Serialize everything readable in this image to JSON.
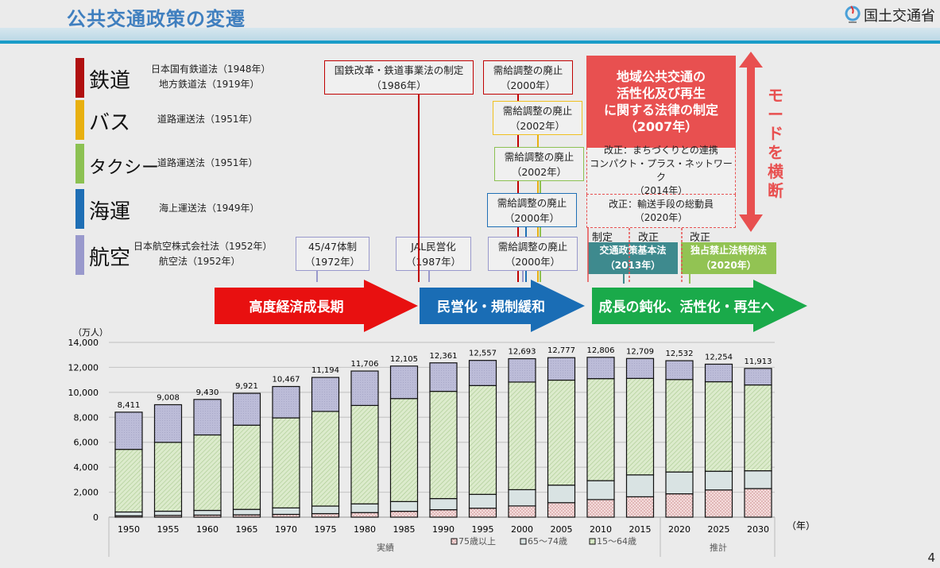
{
  "header": {
    "title": "公共交通政策の変遷",
    "logo_text": "国土交通省",
    "page_number": "4"
  },
  "modes": [
    {
      "name": "鉄道",
      "color": "#b01010",
      "laws": [
        "日本国有鉄道法（1948年）",
        "地方鉄道法（1919年）"
      ]
    },
    {
      "name": "バス",
      "color": "#e8b010",
      "laws": [
        "道路運送法（1951年）"
      ]
    },
    {
      "name": "タクシー",
      "color": "#8cc152",
      "laws": [
        "道路運送法（1951年）"
      ]
    },
    {
      "name": "海運",
      "color": "#1f6fb5",
      "laws": [
        "海上運送法（1949年）"
      ]
    },
    {
      "name": "航空",
      "color": "#9999cc",
      "laws": [
        "日本航空株式会社法（1952年）",
        "航空法（1952年）"
      ]
    }
  ],
  "events": {
    "jnr": {
      "line1": "国鉄改革・鉄道事業法の制定",
      "line2": "（1986年）"
    },
    "air4547": {
      "line1": "45/47体制",
      "line2": "（1972年）"
    },
    "jal": {
      "line1": "JAL民営化",
      "line2": "（1987年）"
    },
    "rail_dereg": {
      "line1": "需給調整の廃止",
      "line2": "（2000年）"
    },
    "bus_dereg": {
      "line1": "需給調整の廃止",
      "line2": "（2002年）"
    },
    "taxi_dereg": {
      "line1": "需給調整の廃止",
      "line2": "（2002年）"
    },
    "sea_dereg": {
      "line1": "需給調整の廃止",
      "line2": "（2000年）"
    },
    "air_dereg": {
      "line1": "需給調整の廃止",
      "line2": "（2000年）"
    },
    "regional_act": {
      "lines": [
        "地域公共交通の",
        "活性化及び再生",
        "に関する法律の制定",
        "（2007年）"
      ]
    },
    "amend2014": {
      "lines": [
        "改正：まちづくりとの連携",
        "コンパクト・プラス・ネットワーク",
        "（2014年）"
      ]
    },
    "amend2020": {
      "lines": [
        "改正：輸送手段の総動員",
        "（2020年）"
      ]
    },
    "tag_enact": "制定",
    "tag_amend1": "改正",
    "tag_amend2": "改正",
    "basic_act": {
      "line1": "交通政策基本法",
      "line2": "（2013年）"
    },
    "antitrust": {
      "line1": "独占禁止法特例法",
      "line2": "（2020年）"
    },
    "cross_mode": "モードを横断"
  },
  "phases": [
    {
      "label": "高度経済成長期",
      "color": "#e81010"
    },
    {
      "label": "民営化・規制緩和",
      "color": "#1a6db5"
    },
    {
      "label": "成長の鈍化、活性化・再生へ",
      "color": "#1aaa4a"
    }
  ],
  "chart_data": {
    "type": "bar",
    "stacked": true,
    "unit_label": "（万人）",
    "x_unit_label": "（年）",
    "categories": [
      "1950",
      "1955",
      "1960",
      "1965",
      "1970",
      "1975",
      "1980",
      "1985",
      "1990",
      "1995",
      "2000",
      "2005",
      "2010",
      "2015",
      "2020",
      "2025",
      "2030"
    ],
    "groups": [
      {
        "label": "実績",
        "from": "1950",
        "to": "2015"
      },
      {
        "label": "推計",
        "from": "2020",
        "to": "2030"
      }
    ],
    "ylim": [
      0,
      14000
    ],
    "yticks": [
      "0",
      "2,000",
      "4,000",
      "6,000",
      "8,000",
      "10,000",
      "12,000",
      "14,000"
    ],
    "totals": [
      8411,
      9008,
      9430,
      9921,
      10467,
      11194,
      11706,
      12105,
      12361,
      12557,
      12693,
      12777,
      12806,
      12709,
      12532,
      12254,
      11913
    ],
    "total_labels": [
      "8,411",
      "9,008",
      "9,430",
      "9,921",
      "10,467",
      "11,194",
      "11,706",
      "12,105",
      "12,361",
      "12,557",
      "12,693",
      "12,777",
      "12,806",
      "12,709",
      "12,532",
      "12,254",
      "11,913"
    ],
    "series": [
      {
        "name": "75歳以上",
        "color": "#f2d4d4",
        "values": [
          106,
          139,
          164,
          187,
          224,
          284,
          366,
          471,
          597,
          717,
          900,
          1160,
          1407,
          1632,
          1872,
          2180,
          2288
        ]
      },
      {
        "name": "65〜74歳",
        "color": "#d9e3e3",
        "values": [
          309,
          338,
          376,
          437,
          516,
          606,
          699,
          779,
          892,
          1109,
          1301,
          1407,
          1517,
          1755,
          1747,
          1497,
          1428
        ]
      },
      {
        "name": "15〜64歳",
        "color": "#d6e9c6",
        "values": [
          5017,
          5517,
          6047,
          6744,
          7212,
          7581,
          7883,
          8251,
          8590,
          8716,
          8622,
          8409,
          8173,
          7728,
          7406,
          7170,
          6875
        ]
      },
      {
        "values": [
          2979,
          3014,
          2843,
          2553,
          2515,
          2723,
          2758,
          2604,
          2282,
          2015,
          1870,
          1801,
          1709,
          1594,
          1507,
          1407,
          1322
        ],
        "color": "#bcbcd8"
      }
    ],
    "legend_placement": "bottom",
    "grid": true
  }
}
